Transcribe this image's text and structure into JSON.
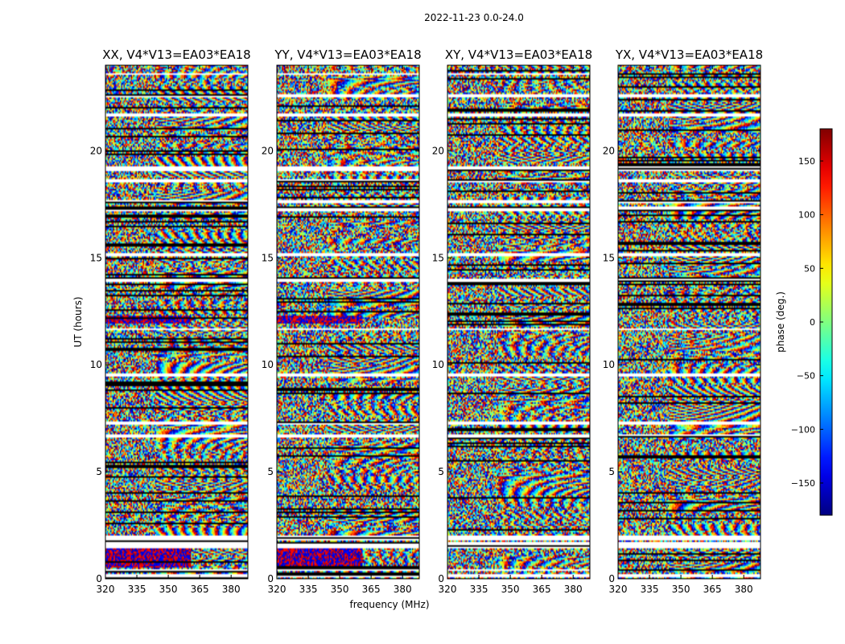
{
  "chart_data": {
    "type": "heatmap",
    "suptitle": "2022-11-23 0.0-24.0",
    "shared_xlabel": "frequency (MHz)",
    "ylabel": "UT (hours)",
    "xlim": [
      320,
      388
    ],
    "ylim": [
      0,
      24
    ],
    "xticks": [
      320,
      335,
      350,
      365,
      380
    ],
    "yticks": [
      0,
      5,
      10,
      15,
      20
    ],
    "panels": [
      {
        "title": "XX, V4*V13=EA03*EA18",
        "polarization": "XX"
      },
      {
        "title": "YY, V4*V13=EA03*EA18",
        "polarization": "YY"
      },
      {
        "title": "XY, V4*V13=EA03*EA18",
        "polarization": "XY"
      },
      {
        "title": "YX, V4*V13=EA03*EA18",
        "polarization": "YX"
      }
    ],
    "flagged_gaps_hours": [
      [
        0.1,
        0.2
      ],
      [
        0.4,
        0.45
      ],
      [
        1.45,
        1.7
      ],
      [
        1.8,
        2.0
      ],
      [
        6.6,
        6.75
      ],
      [
        7.2,
        7.3
      ],
      [
        9.5,
        9.6
      ],
      [
        11.6,
        11.65
      ],
      [
        13.9,
        14.0
      ],
      [
        15.1,
        15.2
      ],
      [
        17.2,
        17.35
      ],
      [
        17.6,
        17.7
      ],
      [
        18.5,
        18.6
      ],
      [
        19.05,
        19.25
      ],
      [
        21.6,
        21.7
      ],
      [
        22.55,
        22.65
      ],
      [
        23.5,
        23.55
      ]
    ],
    "colorbar": {
      "label": "phase (deg.)",
      "range": [
        -180,
        180
      ],
      "ticks": [
        {
          "value": 150,
          "label": "150"
        },
        {
          "value": 100,
          "label": "100"
        },
        {
          "value": 50,
          "label": "50"
        },
        {
          "value": 0,
          "label": "0"
        },
        {
          "value": -50,
          "label": "−50"
        },
        {
          "value": -100,
          "label": "−100"
        },
        {
          "value": -150,
          "label": "−150"
        }
      ],
      "colormap": "jet"
    }
  }
}
